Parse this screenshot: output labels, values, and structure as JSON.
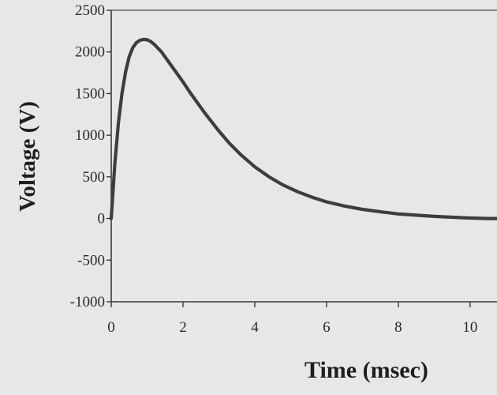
{
  "chart_data": {
    "type": "line",
    "title": "",
    "xlabel": "Time (msec)",
    "ylabel": "Voltage (V)",
    "xlim": [
      0,
      10.75
    ],
    "ylim": [
      -1000,
      2500
    ],
    "xticks": [
      0,
      2,
      4,
      6,
      8,
      10
    ],
    "yticks": [
      -1000,
      -500,
      0,
      500,
      1000,
      1500,
      2000,
      2500
    ],
    "xtick_labels": [
      "0",
      "2",
      "4",
      "6",
      "8",
      "10"
    ],
    "ytick_labels": [
      "-1000",
      "-500",
      "0",
      "500",
      "1000",
      "1500",
      "2000",
      "2500"
    ],
    "grid": false,
    "legend": "none",
    "line_color": "#3d3d3d",
    "series": [
      {
        "x": [
          0,
          0.1,
          0.2,
          0.3,
          0.4,
          0.5,
          0.6,
          0.7,
          0.8,
          0.9,
          1.0,
          1.1,
          1.2,
          1.4,
          1.6,
          1.8,
          2.0,
          2.2,
          2.4,
          2.6,
          2.8,
          3.0,
          3.3,
          3.6,
          4.0,
          4.4,
          4.8,
          5.2,
          5.6,
          6.0,
          6.5,
          7.0,
          7.5,
          8.0,
          8.5,
          9.0,
          9.5,
          10.0,
          10.5,
          10.75
        ],
        "values": [
          0,
          650,
          1150,
          1500,
          1760,
          1940,
          2050,
          2110,
          2140,
          2150,
          2145,
          2125,
          2090,
          2000,
          1880,
          1760,
          1640,
          1510,
          1390,
          1270,
          1160,
          1050,
          900,
          770,
          620,
          500,
          400,
          320,
          255,
          200,
          150,
          110,
          80,
          55,
          40,
          25,
          15,
          5,
          0,
          0
        ]
      }
    ]
  }
}
